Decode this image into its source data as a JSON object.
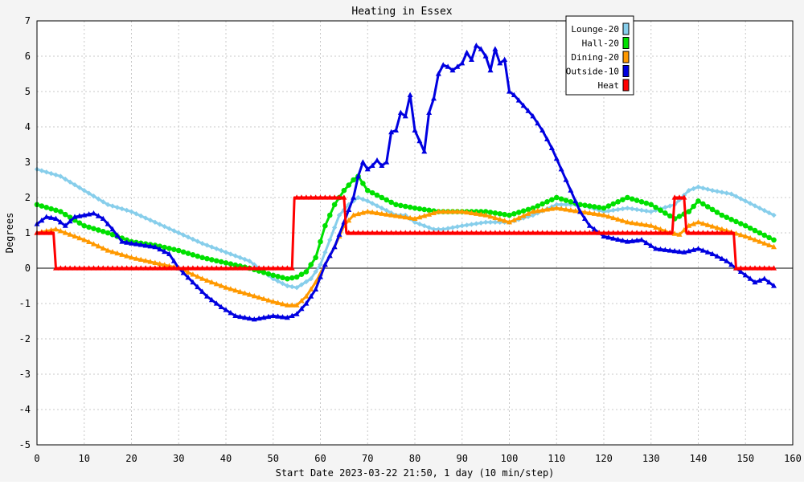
{
  "chart_data": {
    "type": "line",
    "title": "Heating in Essex",
    "xlabel": "Start Date 2023-03-22 21:50, 1 day (10 min/step)",
    "ylabel": "Degrees",
    "xlim": [
      0,
      160
    ],
    "ylim": [
      -5,
      7
    ],
    "xticks": [
      0,
      10,
      20,
      30,
      40,
      50,
      60,
      70,
      80,
      90,
      100,
      110,
      120,
      130,
      140,
      150,
      160
    ],
    "yticks": [
      -5,
      -4,
      -3,
      -2,
      -1,
      0,
      1,
      2,
      3,
      4,
      5,
      6,
      7
    ],
    "grid": true,
    "legend_position": "top-right",
    "series": [
      {
        "name": "Lounge-20",
        "color": "#87ceeb",
        "marker": "diamond",
        "x": [
          0,
          5,
          10,
          15,
          20,
          25,
          30,
          35,
          40,
          45,
          50,
          53,
          55,
          58,
          60,
          62,
          64,
          66,
          68,
          70,
          73,
          76,
          78,
          80,
          82,
          84,
          86,
          90,
          95,
          100,
          105,
          110,
          115,
          120,
          125,
          130,
          135,
          138,
          140,
          143,
          147,
          150,
          153,
          156
        ],
        "y": [
          2.8,
          2.6,
          2.2,
          1.8,
          1.6,
          1.3,
          1.0,
          0.7,
          0.45,
          0.2,
          -0.3,
          -0.5,
          -0.55,
          -0.3,
          0.1,
          0.8,
          1.5,
          1.8,
          2.0,
          1.9,
          1.7,
          1.5,
          1.5,
          1.3,
          1.2,
          1.1,
          1.1,
          1.2,
          1.3,
          1.3,
          1.5,
          1.8,
          1.8,
          1.6,
          1.7,
          1.6,
          1.8,
          2.2,
          2.3,
          2.2,
          2.1,
          1.9,
          1.7,
          1.5
        ]
      },
      {
        "name": "Hall-20",
        "color": "#00e000",
        "marker": "circle",
        "x": [
          0,
          5,
          10,
          15,
          20,
          25,
          30,
          35,
          40,
          45,
          50,
          53,
          55,
          57,
          59,
          61,
          63,
          65,
          67,
          68,
          70,
          73,
          76,
          80,
          85,
          90,
          95,
          100,
          105,
          110,
          115,
          120,
          125,
          130,
          135,
          138,
          140,
          145,
          150,
          156
        ],
        "y": [
          1.8,
          1.6,
          1.2,
          1.0,
          0.75,
          0.65,
          0.5,
          0.3,
          0.15,
          0.0,
          -0.2,
          -0.3,
          -0.25,
          -0.1,
          0.3,
          1.2,
          1.8,
          2.2,
          2.5,
          2.6,
          2.2,
          2.0,
          1.8,
          1.7,
          1.6,
          1.6,
          1.6,
          1.5,
          1.7,
          2.0,
          1.8,
          1.7,
          2.0,
          1.8,
          1.4,
          1.6,
          1.9,
          1.5,
          1.2,
          0.8
        ]
      },
      {
        "name": "Dining-20",
        "color": "#ff9900",
        "marker": "triangle",
        "x": [
          0,
          4,
          10,
          15,
          20,
          25,
          30,
          35,
          40,
          45,
          50,
          53,
          55,
          57,
          59,
          61,
          63,
          65,
          67,
          70,
          75,
          80,
          85,
          90,
          95,
          100,
          105,
          110,
          115,
          120,
          125,
          130,
          134,
          136,
          138,
          140,
          145,
          150,
          156
        ],
        "y": [
          1.0,
          1.1,
          0.8,
          0.5,
          0.3,
          0.15,
          0.0,
          -0.3,
          -0.55,
          -0.75,
          -0.95,
          -1.05,
          -1.05,
          -0.8,
          -0.4,
          0.1,
          0.6,
          1.2,
          1.5,
          1.6,
          1.5,
          1.4,
          1.6,
          1.6,
          1.5,
          1.3,
          1.6,
          1.7,
          1.6,
          1.5,
          1.3,
          1.2,
          1.0,
          0.95,
          1.2,
          1.3,
          1.1,
          0.9,
          0.6
        ]
      },
      {
        "name": "Outside-10",
        "color": "#0000e0",
        "marker": "triangle",
        "x": [
          0,
          2,
          4,
          6,
          8,
          10,
          12,
          14,
          16,
          18,
          20,
          25,
          28,
          30,
          33,
          36,
          39,
          42,
          46,
          50,
          53,
          55,
          57,
          59,
          61,
          63,
          65,
          67,
          68,
          69,
          70,
          71,
          72,
          73,
          74,
          75,
          76,
          77,
          78,
          79,
          80,
          81,
          82,
          83,
          84,
          85,
          86,
          87,
          88,
          90,
          91,
          92,
          93,
          94,
          95,
          96,
          97,
          98,
          99,
          100,
          101,
          103,
          105,
          107,
          109,
          111,
          113,
          115,
          117,
          120,
          125,
          128,
          131,
          134,
          137,
          140,
          143,
          146,
          149,
          152,
          154,
          156
        ],
        "y": [
          1.25,
          1.45,
          1.4,
          1.2,
          1.45,
          1.5,
          1.55,
          1.4,
          1.1,
          0.75,
          0.7,
          0.6,
          0.4,
          0.0,
          -0.4,
          -0.8,
          -1.1,
          -1.35,
          -1.45,
          -1.35,
          -1.4,
          -1.3,
          -1.0,
          -0.6,
          0.1,
          0.6,
          1.3,
          2.0,
          2.6,
          3.0,
          2.8,
          2.9,
          3.05,
          2.9,
          3.0,
          3.85,
          3.9,
          4.4,
          4.3,
          4.9,
          3.9,
          3.6,
          3.3,
          4.4,
          4.8,
          5.5,
          5.75,
          5.7,
          5.6,
          5.8,
          6.1,
          5.9,
          6.3,
          6.2,
          6.0,
          5.6,
          6.2,
          5.8,
          5.9,
          5.0,
          4.9,
          4.6,
          4.3,
          3.9,
          3.4,
          2.8,
          2.2,
          1.6,
          1.2,
          0.9,
          0.75,
          0.8,
          0.55,
          0.5,
          0.45,
          0.55,
          0.4,
          0.2,
          -0.1,
          -0.4,
          -0.3,
          -0.5
        ]
      },
      {
        "name": "Heat",
        "color": "#ff0000",
        "marker": "triangle",
        "x": [
          0,
          3.5,
          4,
          54,
          54.5,
          65,
          65.5,
          134.5,
          135,
          137,
          137.5,
          147.5,
          148,
          156
        ],
        "y": [
          1,
          1,
          0,
          0,
          2,
          2,
          1,
          1,
          2,
          2,
          1,
          1,
          0,
          0
        ]
      }
    ]
  }
}
